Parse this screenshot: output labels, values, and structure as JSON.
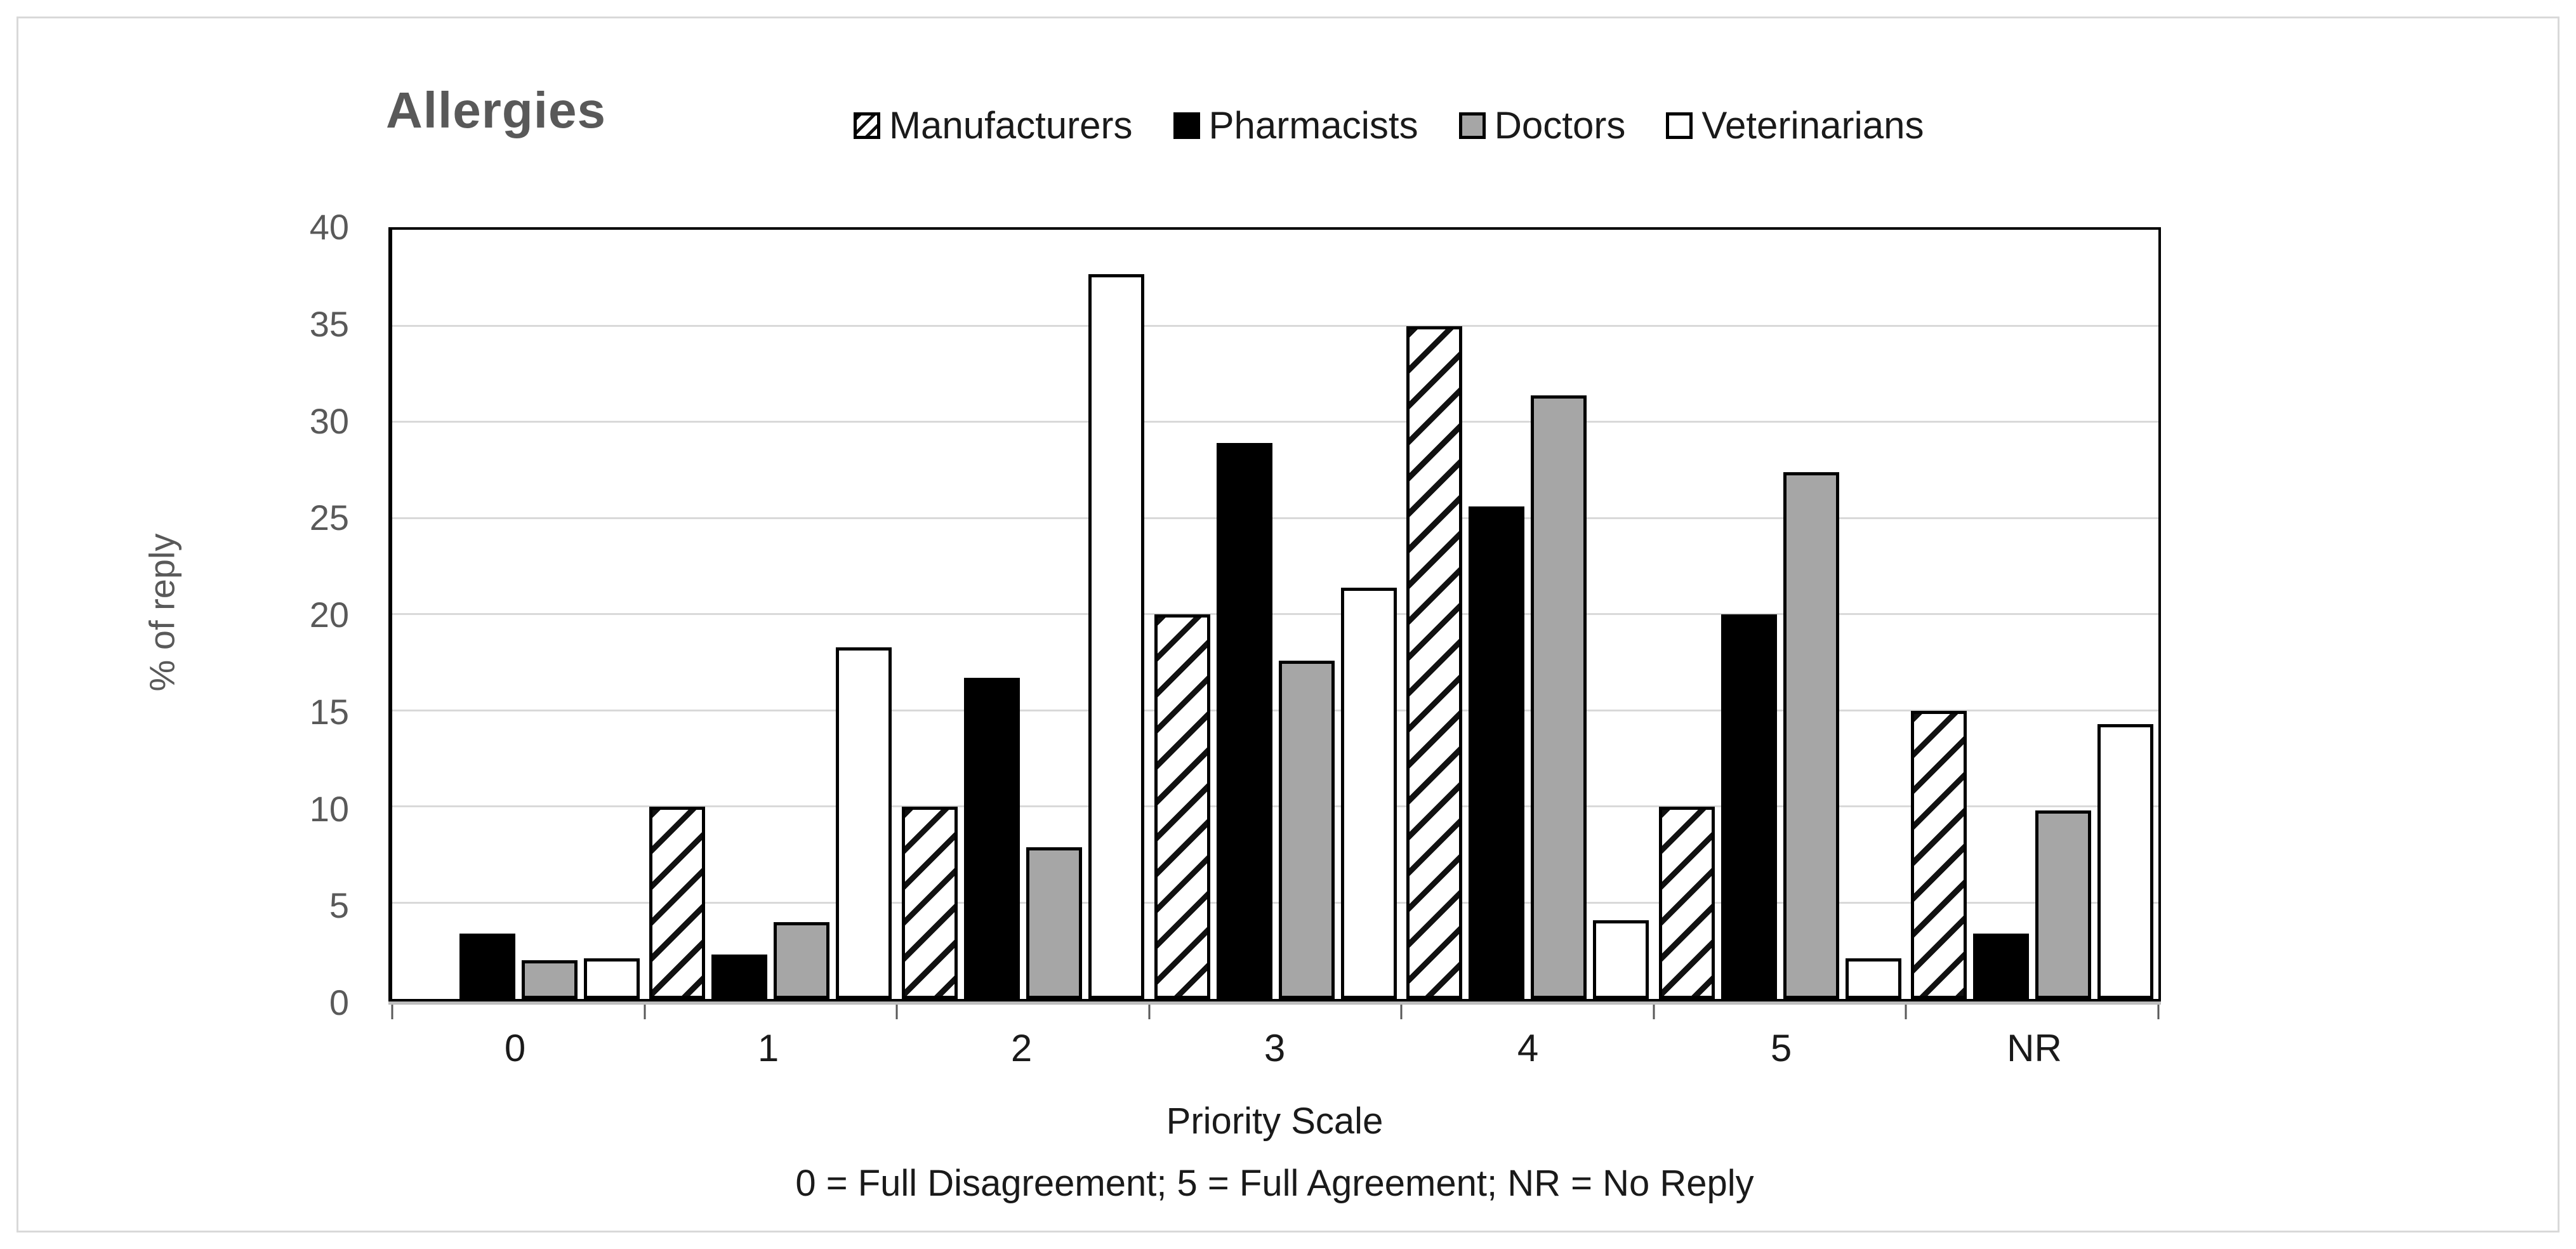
{
  "chart_data": {
    "type": "bar",
    "title": "Allergies",
    "ylabel": "% of reply",
    "xlabel": "Priority Scale",
    "x_note": "0 = Full Disagreement; 5 = Full Agreement; NR = No Reply",
    "categories": [
      "0",
      "1",
      "2",
      "3",
      "4",
      "5",
      "NR"
    ],
    "series": [
      {
        "name": "Manufacturers",
        "pattern": "diagonal-hatch",
        "color": "#ffffff",
        "values": [
          0,
          10,
          10,
          20,
          35,
          10,
          15
        ]
      },
      {
        "name": "Pharmacists",
        "color": "#000000",
        "values": [
          3.4,
          2.3,
          16.7,
          28.9,
          25.6,
          20,
          3.4
        ]
      },
      {
        "name": "Doctors",
        "color": "#a6a6a6",
        "values": [
          2,
          4,
          7.9,
          17.6,
          31.4,
          27.4,
          9.8
        ]
      },
      {
        "name": "Veterinarians",
        "color": "#ffffff",
        "values": [
          2.1,
          18.3,
          37.7,
          21.4,
          4.1,
          2.1,
          14.3
        ]
      }
    ],
    "ylim": [
      0,
      40
    ],
    "ytick_step": 5,
    "grid": true,
    "legend_position": "top",
    "accent_colors": {
      "title_gray": "#595959",
      "gridline_gray": "#d9d9d9",
      "doctors_gray": "#a6a6a6"
    }
  }
}
